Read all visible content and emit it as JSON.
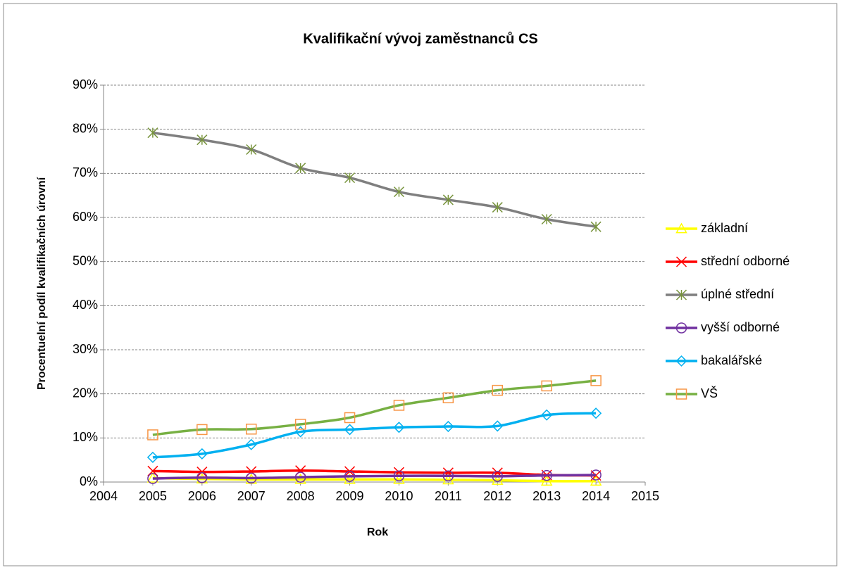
{
  "chart_data": {
    "type": "line",
    "title": "Kvalifikační vývoj zaměstnanců CS",
    "xlabel": "Rok",
    "ylabel": "Procentuelní podíl kvalifikačních úrovní",
    "x": [
      2005,
      2006,
      2007,
      2008,
      2009,
      2010,
      2011,
      2012,
      2013,
      2014
    ],
    "xlim": [
      2004,
      2015
    ],
    "xticks": [
      2004,
      2005,
      2006,
      2007,
      2008,
      2009,
      2010,
      2011,
      2012,
      2013,
      2014,
      2015
    ],
    "ylim": [
      0,
      90
    ],
    "yticks": [
      {
        "value": 0,
        "label": "0%"
      },
      {
        "value": 10,
        "label": "10%"
      },
      {
        "value": 20,
        "label": "20%"
      },
      {
        "value": 30,
        "label": "30%"
      },
      {
        "value": 40,
        "label": "40%"
      },
      {
        "value": 50,
        "label": "50%"
      },
      {
        "value": 60,
        "label": "60%"
      },
      {
        "value": 70,
        "label": "70%"
      },
      {
        "value": 80,
        "label": "80%"
      },
      {
        "value": 90,
        "label": "90%"
      }
    ],
    "grid": true,
    "smooth": true,
    "legend": "right",
    "series": [
      {
        "name": "základní",
        "color": "#ffff00",
        "marker": "triangle",
        "marker_color": "#ffff00",
        "values": [
          0.9,
          0.7,
          0.6,
          0.6,
          0.6,
          0.6,
          0.5,
          0.4,
          0.2,
          0.2
        ]
      },
      {
        "name": "střední odborné",
        "color": "#ff0000",
        "marker": "x",
        "marker_color": "#ff0000",
        "values": [
          2.5,
          2.3,
          2.4,
          2.6,
          2.4,
          2.2,
          2.1,
          2.1,
          1.6,
          1.5
        ]
      },
      {
        "name": "úplné střední",
        "color": "#7f7f7f",
        "marker": "star",
        "marker_color": "#77933c",
        "values": [
          79.2,
          77.6,
          75.4,
          71.2,
          69.0,
          65.8,
          64.0,
          62.3,
          59.6,
          57.9
        ]
      },
      {
        "name": "vyšší odborné",
        "color": "#7030a0",
        "marker": "circle",
        "marker_color": "#7030a0",
        "values": [
          0.8,
          1.0,
          0.9,
          1.1,
          1.3,
          1.4,
          1.4,
          1.3,
          1.5,
          1.6
        ]
      },
      {
        "name": "bakalářské",
        "color": "#00b0f0",
        "marker": "diamond",
        "marker_color": "#00b0f0",
        "values": [
          5.6,
          6.4,
          8.5,
          11.4,
          11.9,
          12.4,
          12.6,
          12.7,
          15.2,
          15.6
        ]
      },
      {
        "name": "VŠ",
        "color": "#77b043",
        "marker": "square",
        "marker_color": "#f79646",
        "values": [
          10.7,
          11.9,
          12.0,
          13.1,
          14.6,
          17.4,
          19.1,
          20.8,
          21.8,
          23.0
        ]
      }
    ]
  }
}
